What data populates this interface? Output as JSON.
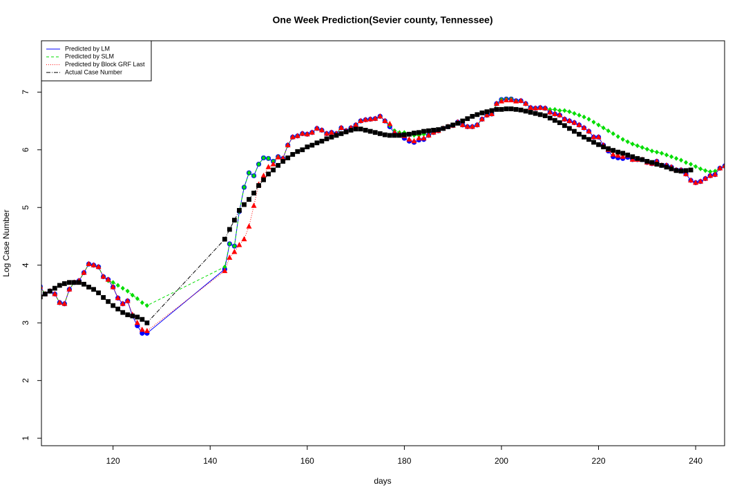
{
  "chart_data": {
    "type": "line",
    "title": "One Week Prediction(Sevier county, Tennessee)",
    "x_label": "days",
    "y_label": "Log Case Number",
    "xlim": [
      105.25,
      245.96
    ],
    "ylim": [
      0.87,
      7.89
    ],
    "xticks": [
      120,
      140,
      160,
      180,
      200,
      220,
      240
    ],
    "yticks": [
      1,
      2,
      3,
      4,
      5,
      6,
      7
    ],
    "legend": "top-left",
    "series": [
      {
        "name": "Predicted by LM",
        "color": "#0000ff",
        "dash": "solid",
        "marker": "circle",
        "x": [
          105,
          106,
          107,
          108,
          109,
          110,
          111,
          112,
          113,
          114,
          115,
          116,
          117,
          118,
          119,
          120,
          121,
          122,
          123,
          124,
          125,
          126,
          127,
          143,
          144,
          145,
          146,
          147,
          148,
          149,
          150,
          151,
          152,
          153,
          154,
          155,
          156,
          157,
          158,
          159,
          160,
          161,
          162,
          163,
          164,
          165,
          166,
          167,
          168,
          169,
          170,
          171,
          172,
          173,
          174,
          175,
          176,
          177,
          178,
          179,
          180,
          181,
          182,
          183,
          184,
          185,
          186,
          187,
          188,
          189,
          190,
          191,
          192,
          193,
          194,
          195,
          196,
          197,
          198,
          199,
          200,
          201,
          202,
          203,
          204,
          205,
          206,
          207,
          208,
          209,
          210,
          211,
          212,
          213,
          214,
          215,
          216,
          217,
          218,
          219,
          220,
          221,
          222,
          223,
          224,
          225,
          226,
          227,
          228,
          229,
          230,
          231,
          232,
          233,
          234,
          235,
          236,
          237,
          238,
          239,
          240,
          241,
          242,
          243,
          244,
          245,
          246
        ],
        "values": [
          3.63,
          3.5,
          3.55,
          3.5,
          3.35,
          3.33,
          3.58,
          3.7,
          3.73,
          3.87,
          4.02,
          4.0,
          3.97,
          3.8,
          3.75,
          3.62,
          3.43,
          3.33,
          3.38,
          3.12,
          2.95,
          2.82,
          2.82,
          3.93,
          4.37,
          4.33,
          4.93,
          5.35,
          5.6,
          5.55,
          5.75,
          5.86,
          5.85,
          5.8,
          5.88,
          5.85,
          6.08,
          6.22,
          6.24,
          6.28,
          6.27,
          6.3,
          6.37,
          6.34,
          6.28,
          6.3,
          6.28,
          6.38,
          6.33,
          6.38,
          6.43,
          6.5,
          6.52,
          6.53,
          6.54,
          6.58,
          6.5,
          6.4,
          6.28,
          6.27,
          6.2,
          6.15,
          6.13,
          6.17,
          6.18,
          6.25,
          6.3,
          6.33,
          6.37,
          6.4,
          6.42,
          6.48,
          6.43,
          6.4,
          6.4,
          6.43,
          6.53,
          6.6,
          6.62,
          6.8,
          6.87,
          6.88,
          6.88,
          6.85,
          6.85,
          6.8,
          6.73,
          6.72,
          6.73,
          6.72,
          6.65,
          6.62,
          6.6,
          6.53,
          6.5,
          6.47,
          6.43,
          6.38,
          6.32,
          6.22,
          6.22,
          6.08,
          5.98,
          5.88,
          5.86,
          5.85,
          5.87,
          5.83,
          5.83,
          5.83,
          5.78,
          5.76,
          5.8,
          5.73,
          5.73,
          5.7,
          5.65,
          5.65,
          5.58,
          5.47,
          5.43,
          5.45,
          5.5,
          5.55,
          5.57,
          5.68,
          5.72
        ]
      },
      {
        "name": "Predicted by SLM",
        "color": "#00dd00",
        "dash": "4,3",
        "marker": "diamond",
        "x": [
          105,
          106,
          107,
          108,
          109,
          110,
          111,
          112,
          113,
          114,
          115,
          116,
          117,
          118,
          119,
          120,
          121,
          122,
          123,
          124,
          125,
          126,
          127,
          143,
          144,
          145,
          146,
          147,
          148,
          149,
          150,
          151,
          152,
          153,
          154,
          155,
          156,
          157,
          158,
          159,
          160,
          161,
          162,
          163,
          164,
          165,
          166,
          167,
          168,
          169,
          170,
          171,
          172,
          173,
          174,
          175,
          176,
          177,
          178,
          179,
          180,
          181,
          182,
          183,
          184,
          185,
          186,
          187,
          188,
          189,
          190,
          191,
          192,
          193,
          194,
          195,
          196,
          197,
          198,
          199,
          200,
          201,
          202,
          203,
          204,
          205,
          206,
          207,
          208,
          209,
          210,
          211,
          212,
          213,
          214,
          215,
          216,
          217,
          218,
          219,
          220,
          221,
          222,
          223,
          224,
          225,
          226,
          227,
          228,
          229,
          230,
          231,
          232,
          233,
          234,
          235,
          236,
          237,
          238,
          239,
          240,
          241,
          242,
          243,
          244,
          245,
          246
        ],
        "values": [
          3.63,
          3.5,
          3.55,
          3.5,
          3.35,
          3.33,
          3.58,
          3.7,
          3.73,
          3.87,
          4.02,
          4.0,
          3.97,
          3.8,
          3.73,
          3.7,
          3.65,
          3.6,
          3.55,
          3.48,
          3.42,
          3.35,
          3.3,
          3.97,
          4.37,
          4.33,
          4.93,
          5.35,
          5.6,
          5.55,
          5.75,
          5.86,
          5.85,
          5.8,
          5.88,
          5.85,
          6.08,
          6.22,
          6.24,
          6.28,
          6.27,
          6.3,
          6.37,
          6.34,
          6.28,
          6.3,
          6.28,
          6.38,
          6.33,
          6.38,
          6.43,
          6.5,
          6.52,
          6.53,
          6.54,
          6.58,
          6.5,
          6.42,
          6.33,
          6.3,
          6.3,
          6.27,
          6.25,
          6.25,
          6.27,
          6.25,
          6.3,
          6.33,
          6.37,
          6.4,
          6.42,
          6.48,
          6.43,
          6.4,
          6.4,
          6.43,
          6.53,
          6.6,
          6.62,
          6.8,
          6.87,
          6.88,
          6.88,
          6.85,
          6.85,
          6.8,
          6.73,
          6.72,
          6.73,
          6.72,
          6.7,
          6.7,
          6.68,
          6.68,
          6.66,
          6.63,
          6.6,
          6.57,
          6.53,
          6.48,
          6.43,
          6.38,
          6.33,
          6.28,
          6.23,
          6.18,
          6.14,
          6.1,
          6.07,
          6.04,
          6.01,
          5.98,
          5.96,
          5.94,
          5.91,
          5.88,
          5.85,
          5.82,
          5.78,
          5.75,
          5.71,
          5.67,
          5.64,
          5.62,
          5.63,
          5.68,
          5.72
        ]
      },
      {
        "name": "Predicted by Block GRF Last",
        "color": "#ff0000",
        "dash": "1,2",
        "marker": "triangle",
        "x": [
          105,
          106,
          107,
          108,
          109,
          110,
          111,
          112,
          113,
          114,
          115,
          116,
          117,
          118,
          119,
          120,
          121,
          122,
          123,
          124,
          125,
          126,
          127,
          143,
          144,
          145,
          146,
          147,
          148,
          149,
          150,
          151,
          152,
          153,
          154,
          155,
          156,
          157,
          158,
          159,
          160,
          161,
          162,
          163,
          164,
          165,
          166,
          167,
          168,
          169,
          170,
          171,
          172,
          173,
          174,
          175,
          176,
          177,
          178,
          179,
          180,
          181,
          182,
          183,
          184,
          185,
          186,
          187,
          188,
          189,
          190,
          191,
          192,
          193,
          194,
          195,
          196,
          197,
          198,
          199,
          200,
          201,
          202,
          203,
          204,
          205,
          206,
          207,
          208,
          209,
          210,
          211,
          212,
          213,
          214,
          215,
          216,
          217,
          218,
          219,
          220,
          221,
          222,
          223,
          224,
          225,
          226,
          227,
          228,
          229,
          230,
          231,
          232,
          233,
          234,
          235,
          236,
          237,
          238,
          239,
          240,
          241,
          242,
          243,
          244,
          245,
          246
        ],
        "values": [
          3.63,
          3.5,
          3.55,
          3.5,
          3.35,
          3.33,
          3.58,
          3.7,
          3.73,
          3.87,
          4.02,
          4.0,
          3.97,
          3.8,
          3.75,
          3.62,
          3.43,
          3.33,
          3.38,
          3.14,
          3.0,
          2.88,
          2.86,
          3.9,
          4.13,
          4.23,
          4.35,
          4.45,
          4.67,
          5.03,
          5.4,
          5.55,
          5.7,
          5.75,
          5.87,
          5.85,
          6.08,
          6.22,
          6.24,
          6.28,
          6.27,
          6.3,
          6.37,
          6.34,
          6.28,
          6.3,
          6.28,
          6.38,
          6.33,
          6.38,
          6.43,
          6.5,
          6.52,
          6.53,
          6.54,
          6.58,
          6.5,
          6.45,
          6.3,
          6.27,
          6.24,
          6.18,
          6.15,
          6.2,
          6.2,
          6.25,
          6.3,
          6.33,
          6.37,
          6.4,
          6.42,
          6.48,
          6.43,
          6.4,
          6.4,
          6.43,
          6.53,
          6.6,
          6.62,
          6.8,
          6.84,
          6.86,
          6.86,
          6.84,
          6.85,
          6.8,
          6.73,
          6.72,
          6.73,
          6.72,
          6.65,
          6.62,
          6.6,
          6.53,
          6.5,
          6.47,
          6.43,
          6.38,
          6.32,
          6.22,
          6.22,
          6.08,
          6.0,
          5.92,
          5.9,
          5.88,
          5.9,
          5.83,
          5.83,
          5.83,
          5.78,
          5.76,
          5.8,
          5.73,
          5.73,
          5.7,
          5.65,
          5.65,
          5.58,
          5.47,
          5.43,
          5.45,
          5.5,
          5.55,
          5.57,
          5.68,
          5.72
        ]
      },
      {
        "name": "Actual Case Number",
        "color": "#000000",
        "dash": "6,2,1,2",
        "marker": "square",
        "x": [
          105,
          106,
          107,
          108,
          109,
          110,
          111,
          112,
          113,
          114,
          115,
          116,
          117,
          118,
          119,
          120,
          121,
          122,
          123,
          124,
          125,
          126,
          127,
          143,
          144,
          145,
          146,
          147,
          148,
          149,
          150,
          151,
          152,
          153,
          154,
          155,
          156,
          157,
          158,
          159,
          160,
          161,
          162,
          163,
          164,
          165,
          166,
          167,
          168,
          169,
          170,
          171,
          172,
          173,
          174,
          175,
          176,
          177,
          178,
          179,
          180,
          181,
          182,
          183,
          184,
          185,
          186,
          187,
          188,
          189,
          190,
          191,
          192,
          193,
          194,
          195,
          196,
          197,
          198,
          199,
          200,
          201,
          202,
          203,
          204,
          205,
          206,
          207,
          208,
          209,
          210,
          211,
          212,
          213,
          214,
          215,
          216,
          217,
          218,
          219,
          220,
          221,
          222,
          223,
          224,
          225,
          226,
          227,
          228,
          229,
          230,
          231,
          232,
          233,
          234,
          235,
          236,
          237,
          238,
          239
        ],
        "values": [
          3.45,
          3.5,
          3.55,
          3.6,
          3.65,
          3.68,
          3.7,
          3.7,
          3.7,
          3.67,
          3.62,
          3.58,
          3.52,
          3.44,
          3.37,
          3.3,
          3.24,
          3.18,
          3.14,
          3.12,
          3.1,
          3.06,
          3.0,
          4.45,
          4.62,
          4.78,
          4.95,
          5.05,
          5.14,
          5.25,
          5.38,
          5.48,
          5.58,
          5.65,
          5.73,
          5.8,
          5.86,
          5.92,
          5.97,
          6.0,
          6.05,
          6.08,
          6.12,
          6.15,
          6.19,
          6.22,
          6.25,
          6.28,
          6.31,
          6.34,
          6.36,
          6.36,
          6.34,
          6.32,
          6.3,
          6.28,
          6.26,
          6.25,
          6.25,
          6.25,
          6.26,
          6.27,
          6.29,
          6.3,
          6.32,
          6.33,
          6.34,
          6.35,
          6.37,
          6.4,
          6.43,
          6.46,
          6.5,
          6.54,
          6.58,
          6.61,
          6.64,
          6.66,
          6.68,
          6.7,
          6.7,
          6.71,
          6.71,
          6.7,
          6.69,
          6.67,
          6.65,
          6.63,
          6.61,
          6.59,
          6.55,
          6.51,
          6.47,
          6.42,
          6.37,
          6.32,
          6.27,
          6.22,
          6.18,
          6.13,
          6.09,
          6.05,
          6.02,
          5.99,
          5.96,
          5.94,
          5.91,
          5.88,
          5.85,
          5.83,
          5.8,
          5.78,
          5.75,
          5.73,
          5.7,
          5.67,
          5.64,
          5.63,
          5.64,
          5.65
        ]
      }
    ]
  }
}
